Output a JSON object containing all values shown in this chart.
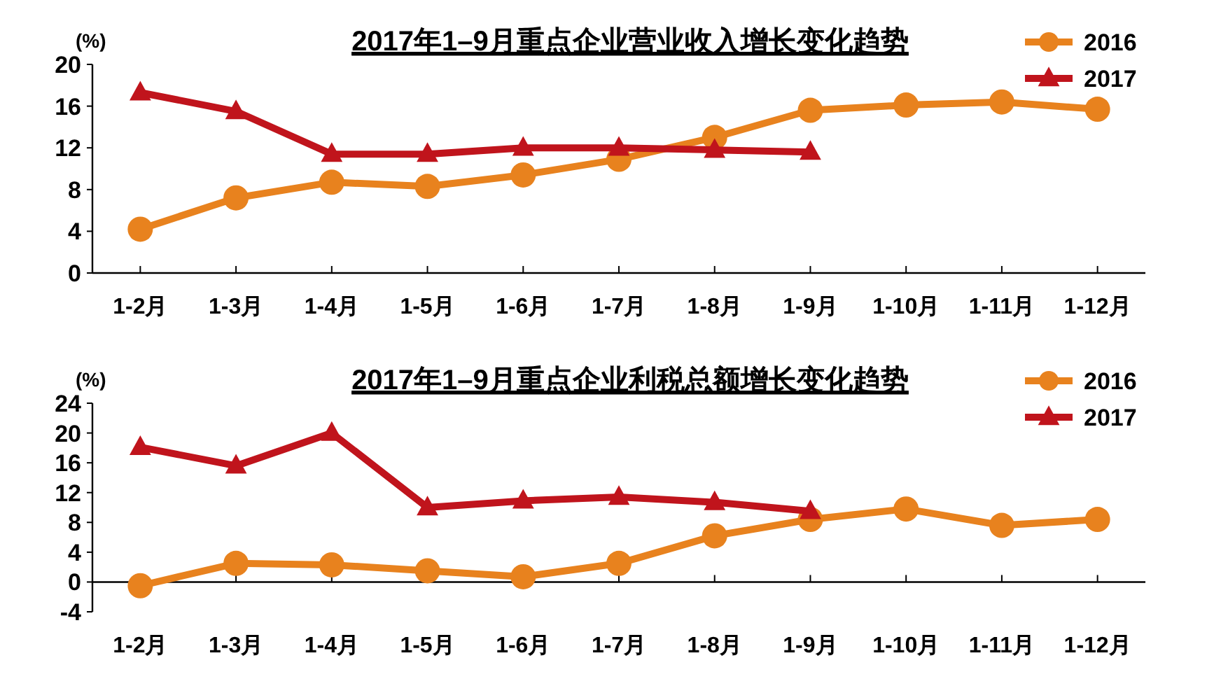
{
  "chart_data": [
    {
      "type": "line",
      "title": "2017年1–9月重点企业营业收入增长变化趋势",
      "ylabel": "(%)",
      "categories": [
        "1-2月",
        "1-3月",
        "1-4月",
        "1-5月",
        "1-6月",
        "1-7月",
        "1-8月",
        "1-9月",
        "1-10月",
        "1-11月",
        "1-12月"
      ],
      "series": [
        {
          "name": "2016",
          "color": "#e8821e",
          "marker": "circle",
          "values": [
            4.2,
            7.2,
            8.7,
            8.3,
            9.4,
            10.9,
            13.0,
            15.6,
            16.1,
            16.4,
            15.7
          ]
        },
        {
          "name": "2017",
          "color": "#c0141c",
          "marker": "triangle",
          "values": [
            17.3,
            15.5,
            11.4,
            11.4,
            12.0,
            12.0,
            11.8,
            11.6,
            null,
            null,
            null
          ]
        }
      ],
      "ylim": [
        0,
        20
      ],
      "yticks": [
        0,
        4,
        8,
        12,
        16,
        20
      ],
      "grid": false,
      "legend": "top right"
    },
    {
      "type": "line",
      "title": "2017年1–9月重点企业利税总额增长变化趋势",
      "ylabel": "(%)",
      "categories": [
        "1-2月",
        "1-3月",
        "1-4月",
        "1-5月",
        "1-6月",
        "1-7月",
        "1-8月",
        "1-9月",
        "1-10月",
        "1-11月",
        "1-12月"
      ],
      "series": [
        {
          "name": "2016",
          "color": "#e8821e",
          "marker": "circle",
          "values": [
            -0.5,
            2.5,
            2.3,
            1.5,
            0.7,
            2.5,
            6.2,
            8.4,
            9.8,
            7.6,
            8.4
          ]
        },
        {
          "name": "2017",
          "color": "#c0141c",
          "marker": "triangle",
          "values": [
            18.1,
            15.6,
            20.0,
            10.0,
            10.9,
            11.4,
            10.7,
            9.5,
            null,
            null,
            null
          ]
        }
      ],
      "ylim": [
        -4,
        24
      ],
      "yticks": [
        -4,
        0,
        4,
        8,
        12,
        16,
        20,
        24
      ],
      "grid": false,
      "legend": "top right"
    }
  ]
}
